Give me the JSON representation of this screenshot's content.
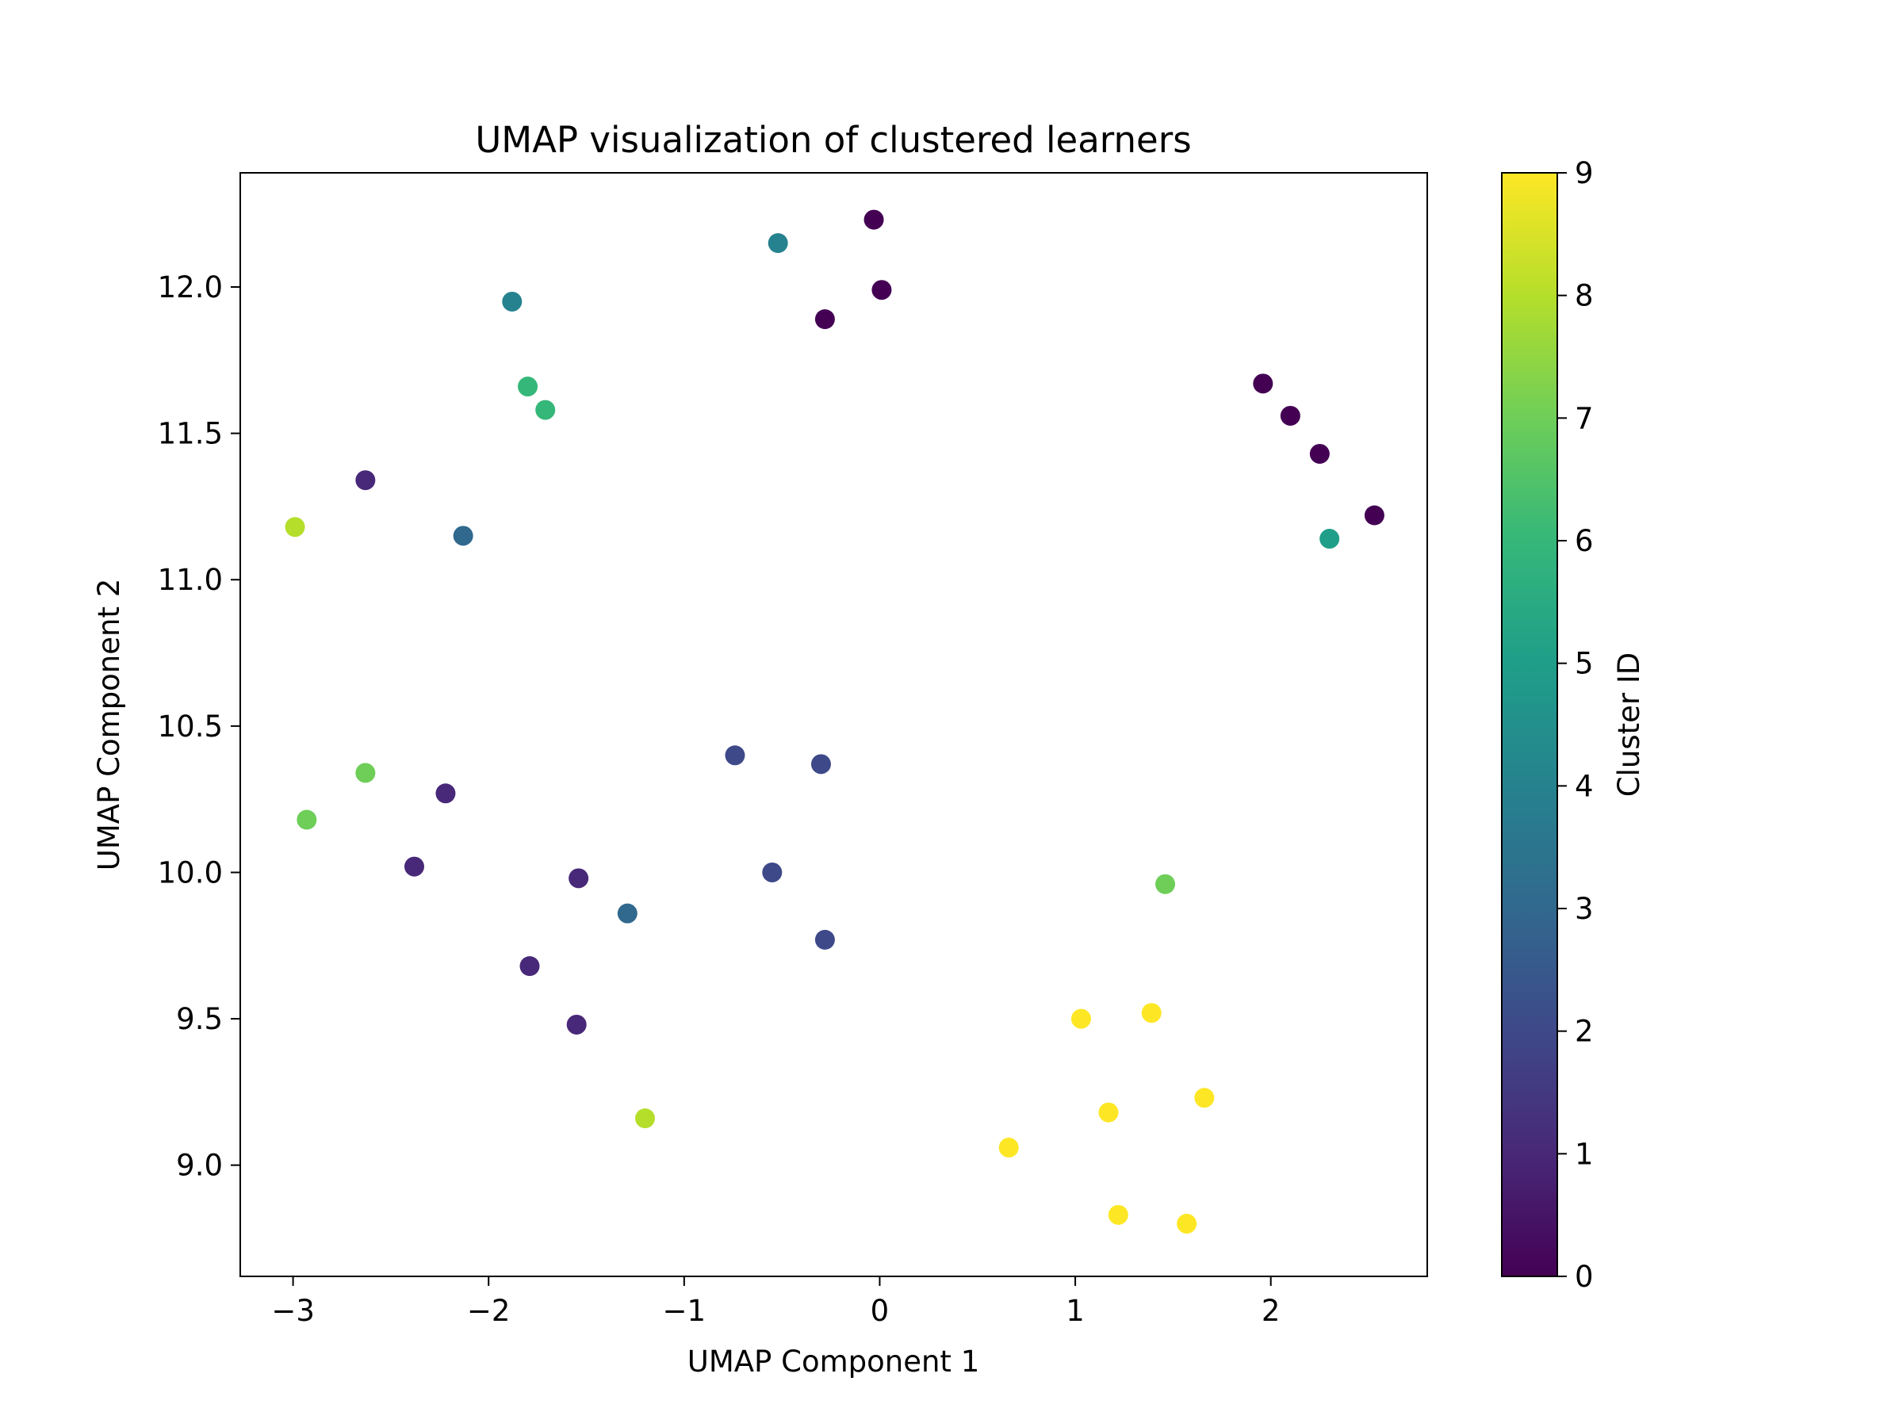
{
  "chart_data": {
    "type": "scatter",
    "title": "UMAP visualization of clustered learners",
    "xlabel": "UMAP Component 1",
    "ylabel": "UMAP Component 2",
    "xlim": [
      -3.27,
      2.8
    ],
    "ylim": [
      8.62,
      12.39
    ],
    "xticks": [
      -3,
      -2,
      -1,
      0,
      1,
      2
    ],
    "xtick_labels": [
      "−3",
      "−2",
      "−1",
      "0",
      "1",
      "2"
    ],
    "yticks": [
      9.0,
      9.5,
      10.0,
      10.5,
      11.0,
      11.5,
      12.0
    ],
    "ytick_labels": [
      "9.0",
      "9.5",
      "10.0",
      "10.5",
      "11.0",
      "11.5",
      "12.0"
    ],
    "grid": false,
    "colormap": "viridis",
    "colorbar": {
      "label": "Cluster ID",
      "range": [
        0,
        9
      ],
      "ticks": [
        0,
        1,
        2,
        3,
        4,
        5,
        6,
        7,
        8,
        9
      ],
      "tick_labels": [
        "0",
        "1",
        "2",
        "3",
        "4",
        "5",
        "6",
        "7",
        "8",
        "9"
      ]
    },
    "points": [
      {
        "x": -0.03,
        "y": 12.23,
        "cluster": 0
      },
      {
        "x": 0.01,
        "y": 11.99,
        "cluster": 0
      },
      {
        "x": -0.28,
        "y": 11.89,
        "cluster": 0
      },
      {
        "x": 1.96,
        "y": 11.67,
        "cluster": 0
      },
      {
        "x": 2.1,
        "y": 11.56,
        "cluster": 0
      },
      {
        "x": 2.25,
        "y": 11.43,
        "cluster": 0
      },
      {
        "x": 2.53,
        "y": 11.22,
        "cluster": 0
      },
      {
        "x": -2.63,
        "y": 11.34,
        "cluster": 1
      },
      {
        "x": -2.22,
        "y": 10.27,
        "cluster": 1
      },
      {
        "x": -2.38,
        "y": 10.02,
        "cluster": 1
      },
      {
        "x": -1.54,
        "y": 9.98,
        "cluster": 1
      },
      {
        "x": -1.79,
        "y": 9.68,
        "cluster": 1
      },
      {
        "x": -1.55,
        "y": 9.48,
        "cluster": 1
      },
      {
        "x": -0.74,
        "y": 10.4,
        "cluster": 2
      },
      {
        "x": -0.3,
        "y": 10.37,
        "cluster": 2
      },
      {
        "x": -0.55,
        "y": 10.0,
        "cluster": 2
      },
      {
        "x": -0.28,
        "y": 9.77,
        "cluster": 2
      },
      {
        "x": -2.13,
        "y": 11.15,
        "cluster": 3
      },
      {
        "x": -1.29,
        "y": 9.86,
        "cluster": 3
      },
      {
        "x": -1.88,
        "y": 11.95,
        "cluster": 4
      },
      {
        "x": -0.52,
        "y": 12.15,
        "cluster": 4
      },
      {
        "x": 2.3,
        "y": 11.14,
        "cluster": 5
      },
      {
        "x": -1.8,
        "y": 11.66,
        "cluster": 6
      },
      {
        "x": -1.71,
        "y": 11.58,
        "cluster": 6
      },
      {
        "x": -2.63,
        "y": 10.34,
        "cluster": 7
      },
      {
        "x": -2.93,
        "y": 10.18,
        "cluster": 7
      },
      {
        "x": 1.46,
        "y": 9.96,
        "cluster": 7
      },
      {
        "x": -2.99,
        "y": 11.18,
        "cluster": 8
      },
      {
        "x": -1.2,
        "y": 9.16,
        "cluster": 8
      },
      {
        "x": 1.03,
        "y": 9.5,
        "cluster": 9
      },
      {
        "x": 1.39,
        "y": 9.52,
        "cluster": 9
      },
      {
        "x": 1.17,
        "y": 9.18,
        "cluster": 9
      },
      {
        "x": 1.66,
        "y": 9.23,
        "cluster": 9
      },
      {
        "x": 0.66,
        "y": 9.06,
        "cluster": 9
      },
      {
        "x": 1.22,
        "y": 8.83,
        "cluster": 9
      },
      {
        "x": 1.57,
        "y": 8.8,
        "cluster": 9
      }
    ]
  }
}
